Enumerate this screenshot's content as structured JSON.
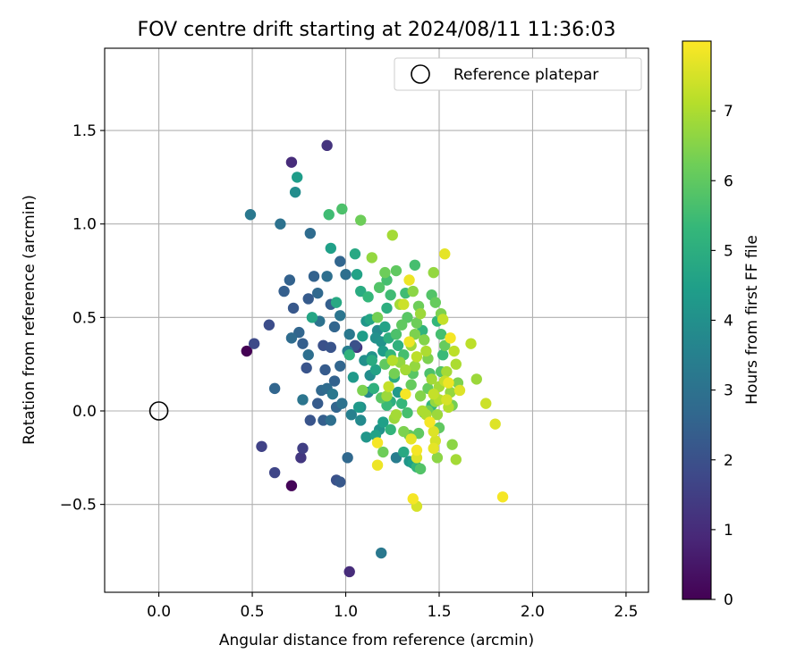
{
  "chart_data": {
    "type": "scatter",
    "title": "FOV centre drift starting at 2024/08/11 11:36:03",
    "xlabel": "Angular distance from reference (arcmin)",
    "ylabel": "Rotation from reference (arcmin)",
    "xlim": [
      -0.29,
      2.62
    ],
    "ylim": [
      -0.97,
      1.94
    ],
    "xticks": [
      "0.0",
      "0.5",
      "1.0",
      "1.5",
      "2.0",
      "2.5"
    ],
    "yticks": [
      "−0.5",
      "0.0",
      "0.5",
      "1.0",
      "1.5"
    ],
    "grid": true,
    "legend": {
      "placement": "top-right",
      "entries": [
        "Reference platepar"
      ]
    },
    "reference_point": {
      "x": 0.0,
      "y": 0.0
    },
    "colorbar": {
      "label": "Hours from first FF file",
      "min": 0,
      "max": 8,
      "ticks": [
        "0",
        "1",
        "2",
        "3",
        "4",
        "5",
        "6",
        "7"
      ],
      "colormap": "viridis"
    },
    "colors": [
      "#440154",
      "#482878",
      "#3e4989",
      "#31688e",
      "#26828e",
      "#1f9e89",
      "#35b779",
      "#6ece58",
      "#b5de2b",
      "#fde725"
    ],
    "points": [
      [
        0.47,
        0.32,
        0.0
      ],
      [
        0.71,
        -0.4,
        0.1
      ],
      [
        1.02,
        -0.86,
        1.0
      ],
      [
        0.71,
        1.33,
        1.0
      ],
      [
        0.9,
        1.42,
        1.2
      ],
      [
        0.55,
        -0.19,
        1.6
      ],
      [
        0.62,
        -0.33,
        1.7
      ],
      [
        0.51,
        0.36,
        1.8
      ],
      [
        0.59,
        0.46,
        1.9
      ],
      [
        0.77,
        -0.2,
        1.5
      ],
      [
        0.76,
        -0.25,
        1.3
      ],
      [
        0.95,
        -0.37,
        2.0
      ],
      [
        0.97,
        -0.38,
        2.2
      ],
      [
        0.79,
        0.23,
        2.1
      ],
      [
        0.85,
        0.04,
        2.3
      ],
      [
        0.81,
        -0.05,
        2.1
      ],
      [
        0.62,
        0.12,
        2.6
      ],
      [
        0.49,
        1.05,
        3.2
      ],
      [
        0.65,
        1.0,
        3.0
      ],
      [
        0.73,
        1.17,
        3.9
      ],
      [
        0.81,
        0.95,
        2.8
      ],
      [
        0.74,
        1.25,
        4.4
      ],
      [
        0.7,
        0.7,
        2.5
      ],
      [
        0.67,
        0.64,
        2.4
      ],
      [
        0.72,
        0.55,
        2.2
      ],
      [
        0.75,
        0.42,
        2.6
      ],
      [
        0.71,
        0.39,
        2.8
      ],
      [
        0.77,
        0.36,
        2.4
      ],
      [
        0.8,
        0.3,
        2.9
      ],
      [
        0.83,
        0.72,
        2.5
      ],
      [
        0.85,
        0.63,
        2.7
      ],
      [
        0.8,
        0.6,
        2.3
      ],
      [
        0.86,
        0.48,
        3.0
      ],
      [
        0.88,
        0.35,
        2.0
      ],
      [
        0.92,
        0.34,
        2.1
      ],
      [
        0.89,
        0.22,
        2.3
      ],
      [
        0.94,
        0.16,
        2.5
      ],
      [
        0.97,
        0.24,
        2.6
      ],
      [
        0.9,
        0.12,
        2.8
      ],
      [
        0.93,
        0.09,
        3.2
      ],
      [
        0.87,
        0.11,
        2.7
      ],
      [
        0.88,
        -0.05,
        2.4
      ],
      [
        0.95,
        0.02,
        2.6
      ],
      [
        0.92,
        -0.05,
        2.9
      ],
      [
        0.98,
        0.04,
        3.0
      ],
      [
        1.01,
        -0.25,
        2.7
      ],
      [
        0.77,
        0.06,
        3.1
      ],
      [
        0.82,
        0.5,
        4.7
      ],
      [
        0.9,
        0.72,
        2.9
      ],
      [
        0.92,
        0.57,
        2.4
      ],
      [
        0.94,
        0.45,
        2.6
      ],
      [
        0.97,
        0.51,
        3.1
      ],
      [
        1.0,
        0.73,
        2.9
      ],
      [
        1.02,
        0.41,
        3.2
      ],
      [
        1.05,
        0.35,
        2.0
      ],
      [
        1.01,
        0.32,
        3.4
      ],
      [
        0.97,
        0.8,
        2.6
      ],
      [
        0.95,
        0.58,
        4.8
      ],
      [
        0.98,
        1.08,
        5.7
      ],
      [
        0.91,
        1.05,
        5.5
      ],
      [
        1.08,
        1.02,
        6.2
      ],
      [
        0.92,
        0.87,
        4.5
      ],
      [
        1.05,
        0.84,
        4.8
      ],
      [
        1.06,
        0.73,
        4.6
      ],
      [
        1.08,
        0.64,
        4.9
      ],
      [
        1.12,
        0.61,
        5.3
      ],
      [
        1.11,
        0.48,
        4.2
      ],
      [
        1.09,
        0.4,
        4.4
      ],
      [
        1.13,
        0.49,
        4.7
      ],
      [
        1.1,
        0.27,
        4.0
      ],
      [
        1.13,
        0.19,
        3.9
      ],
      [
        1.14,
        0.29,
        4.1
      ],
      [
        1.16,
        0.22,
        4.6
      ],
      [
        1.12,
        0.1,
        3.7
      ],
      [
        1.08,
        0.02,
        3.9
      ],
      [
        1.04,
        0.18,
        4.3
      ],
      [
        1.02,
        0.3,
        5.2
      ],
      [
        1.09,
        0.11,
        6.4
      ],
      [
        1.07,
        0.02,
        4.3
      ],
      [
        1.15,
        0.12,
        5.1
      ],
      [
        1.17,
        0.43,
        3.8
      ],
      [
        1.19,
        0.37,
        4.1
      ],
      [
        1.2,
        0.32,
        4.4
      ],
      [
        1.21,
        0.45,
        4.6
      ],
      [
        1.22,
        0.55,
        5.0
      ],
      [
        1.24,
        0.62,
        5.5
      ],
      [
        1.25,
        0.94,
        6.9
      ],
      [
        1.27,
        0.75,
        6.0
      ],
      [
        1.21,
        0.74,
        6.2
      ],
      [
        1.14,
        0.82,
        6.7
      ],
      [
        1.18,
        0.66,
        5.8
      ],
      [
        1.22,
        0.7,
        5.6
      ],
      [
        1.17,
        0.5,
        6.3
      ],
      [
        1.21,
        0.25,
        6.0
      ],
      [
        1.25,
        0.27,
        7.1
      ],
      [
        1.23,
        0.39,
        5.0
      ],
      [
        1.24,
        0.3,
        5.3
      ],
      [
        1.27,
        0.41,
        5.7
      ],
      [
        1.28,
        0.35,
        5.1
      ],
      [
        1.26,
        0.18,
        4.9
      ],
      [
        1.28,
        0.1,
        4.3
      ],
      [
        1.24,
        0.05,
        5.0
      ],
      [
        1.22,
        0.03,
        5.4
      ],
      [
        1.2,
        -0.06,
        4.5
      ],
      [
        1.18,
        -0.1,
        4.1
      ],
      [
        1.16,
        -0.13,
        4.6
      ],
      [
        1.11,
        -0.14,
        4.2
      ],
      [
        1.17,
        -0.17,
        7.9
      ],
      [
        1.17,
        -0.29,
        7.8
      ],
      [
        1.2,
        -0.22,
        6.2
      ],
      [
        1.24,
        -0.1,
        5.2
      ],
      [
        1.26,
        -0.04,
        6.8
      ],
      [
        1.27,
        -0.25,
        3.4
      ],
      [
        1.31,
        -0.22,
        4.8
      ],
      [
        1.34,
        -0.27,
        4.2
      ],
      [
        1.35,
        -0.15,
        7.7
      ],
      [
        1.36,
        -0.28,
        4.5
      ],
      [
        1.38,
        -0.3,
        5.2
      ],
      [
        1.4,
        -0.31,
        5.8
      ],
      [
        1.38,
        -0.25,
        7.6
      ],
      [
        1.38,
        -0.21,
        7.9
      ],
      [
        1.36,
        -0.47,
        7.9
      ],
      [
        1.38,
        -0.51,
        7.5
      ],
      [
        1.34,
        -0.13,
        6.0
      ],
      [
        1.33,
        -0.01,
        5.6
      ],
      [
        1.3,
        0.04,
        5.3
      ],
      [
        1.32,
        0.09,
        7.9
      ],
      [
        1.35,
        0.14,
        6.1
      ],
      [
        1.36,
        0.2,
        5.9
      ],
      [
        1.37,
        0.24,
        6.7
      ],
      [
        1.38,
        0.29,
        7.2
      ],
      [
        1.35,
        0.35,
        6.8
      ],
      [
        1.34,
        0.37,
        7.8
      ],
      [
        1.37,
        0.41,
        6.4
      ],
      [
        1.38,
        0.47,
        6.2
      ],
      [
        1.33,
        0.5,
        5.9
      ],
      [
        1.31,
        0.57,
        7.4
      ],
      [
        1.29,
        0.57,
        6.9
      ],
      [
        1.3,
        0.46,
        6.0
      ],
      [
        1.32,
        0.63,
        5.5
      ],
      [
        1.34,
        0.7,
        7.8
      ],
      [
        1.36,
        0.64,
        6.6
      ],
      [
        1.37,
        0.78,
        5.6
      ],
      [
        1.39,
        0.56,
        6.2
      ],
      [
        1.4,
        0.52,
        6.8
      ],
      [
        1.41,
        0.43,
        5.2
      ],
      [
        1.42,
        0.38,
        6.5
      ],
      [
        1.43,
        0.32,
        7.0
      ],
      [
        1.44,
        0.28,
        6.4
      ],
      [
        1.45,
        0.2,
        5.7
      ],
      [
        1.46,
        0.17,
        6.9
      ],
      [
        1.44,
        0.12,
        6.1
      ],
      [
        1.47,
        0.09,
        7.3
      ],
      [
        1.48,
        0.05,
        6.7
      ],
      [
        1.46,
        0.03,
        5.3
      ],
      [
        1.44,
        0.0,
        6.2
      ],
      [
        1.43,
        -0.02,
        7.0
      ],
      [
        1.45,
        -0.06,
        7.9
      ],
      [
        1.47,
        -0.11,
        7.6
      ],
      [
        1.48,
        -0.16,
        7.5
      ],
      [
        1.47,
        -0.2,
        7.7
      ],
      [
        1.49,
        -0.25,
        6.6
      ],
      [
        1.5,
        -0.09,
        6.0
      ],
      [
        1.49,
        -0.02,
        6.8
      ],
      [
        1.5,
        0.06,
        7.1
      ],
      [
        1.5,
        0.13,
        6.9
      ],
      [
        1.51,
        0.21,
        5.8
      ],
      [
        1.52,
        0.3,
        5.4
      ],
      [
        1.53,
        0.35,
        6.1
      ],
      [
        1.51,
        0.41,
        5.6
      ],
      [
        1.49,
        0.48,
        5.3
      ],
      [
        1.51,
        0.52,
        6.4
      ],
      [
        1.52,
        0.49,
        7.3
      ],
      [
        1.48,
        0.58,
        6.1
      ],
      [
        1.46,
        0.62,
        5.8
      ],
      [
        1.47,
        0.74,
        6.7
      ],
      [
        1.53,
        0.84,
        7.7
      ],
      [
        1.53,
        0.16,
        7.3
      ],
      [
        1.54,
        0.21,
        6.9
      ],
      [
        1.55,
        0.15,
        7.8
      ],
      [
        1.56,
        0.1,
        6.7
      ],
      [
        1.54,
        0.06,
        7.5
      ],
      [
        1.55,
        0.02,
        7.1
      ],
      [
        1.57,
        -0.18,
        6.6
      ],
      [
        1.56,
        0.39,
        7.9
      ],
      [
        1.58,
        0.32,
        7.2
      ],
      [
        1.59,
        0.25,
        7.0
      ],
      [
        1.6,
        0.15,
        6.4
      ],
      [
        1.61,
        0.11,
        7.6
      ],
      [
        1.57,
        0.03,
        6.3
      ],
      [
        1.59,
        -0.26,
        6.9
      ],
      [
        1.67,
        0.36,
        7.2
      ],
      [
        1.7,
        0.17,
        6.8
      ],
      [
        1.75,
        0.04,
        7.4
      ],
      [
        1.8,
        -0.07,
        7.6
      ],
      [
        1.84,
        -0.46,
        7.9
      ],
      [
        1.19,
        -0.76,
        3.2
      ],
      [
        1.06,
        0.34,
        1.3
      ],
      [
        1.03,
        -0.02,
        3.5
      ],
      [
        1.08,
        -0.05,
        3.8
      ],
      [
        1.14,
        0.27,
        4.9
      ],
      [
        1.16,
        0.39,
        4.0
      ],
      [
        1.19,
        0.07,
        5.9
      ],
      [
        1.22,
        0.08,
        6.8
      ],
      [
        1.23,
        0.13,
        7.3
      ],
      [
        1.26,
        0.2,
        6.3
      ],
      [
        1.29,
        0.26,
        6.7
      ],
      [
        1.31,
        0.3,
        5.6
      ],
      [
        1.32,
        0.22,
        6.9
      ],
      [
        1.4,
        0.08,
        6.5
      ],
      [
        1.41,
        0.0,
        7.0
      ],
      [
        1.42,
        -0.01,
        5.0
      ],
      [
        1.39,
        -0.12,
        6.0
      ],
      [
        1.31,
        -0.11,
        6.4
      ],
      [
        1.27,
        -0.02,
        6.9
      ]
    ]
  }
}
